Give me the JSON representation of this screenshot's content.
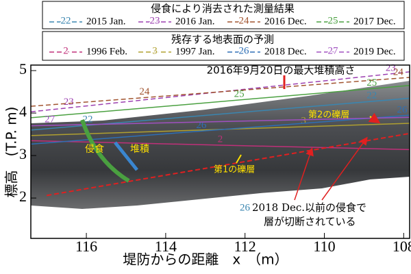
{
  "chart_data": {
    "type": "line",
    "xlabel": "堤防からの距離　x　（m）",
    "ylabel": "標高　(T.P. m)",
    "xlim": [
      117.4,
      107.85
    ],
    "xticks": [
      116,
      114,
      112,
      110,
      108
    ],
    "ylim": [
      1.05,
      5.13
    ],
    "yticks": [
      2,
      3,
      4,
      5
    ],
    "legends": [
      {
        "title": "侵食により消去された測量結果",
        "series": [
          {
            "name": "2015 Jan.",
            "label": "22",
            "color": "#3a86b0",
            "dashed": false,
            "x": [
              117.4,
              107.85
            ],
            "values": [
              3.6,
              4.35
            ]
          },
          {
            "name": "2016 Jan.",
            "label": "23",
            "color": "#9b3fb0",
            "dashed": true,
            "x": [
              117.4,
              107.85
            ],
            "values": [
              4.03,
              4.97
            ]
          },
          {
            "name": "2016 Dec.",
            "label": "24",
            "color": "#a0522d",
            "dashed": true,
            "x": [
              117.4,
              107.85
            ],
            "values": [
              4.16,
              4.84
            ]
          },
          {
            "name": "2017 Dec.",
            "label": "25",
            "color": "#4aa040",
            "dashed": false,
            "x": [
              117.4,
              107.85
            ],
            "values": [
              3.89,
              4.65
            ]
          }
        ]
      },
      {
        "title": "残存する地表面の予測",
        "series": [
          {
            "name": "1996 Feb.",
            "label": "2",
            "color": "#c0307a",
            "dashed": false,
            "x": [
              117.4,
              107.85
            ],
            "values": [
              3.35,
              3.14
            ]
          },
          {
            "name": "1997 Jan.",
            "label": "3",
            "color": "#b0a030",
            "dashed": false,
            "x": [
              117.4,
              107.85
            ],
            "values": [
              3.47,
              3.76
            ]
          },
          {
            "name": "2018 Dec.",
            "label": "26",
            "color": "#2e6fb5",
            "dashed": false,
            "x": [
              117.4,
              107.85
            ],
            "values": [
              3.27,
              3.95
            ]
          },
          {
            "name": "2019 Dec.",
            "label": "27",
            "color": "#a050c0",
            "dashed": false,
            "x": [
              117.4,
              107.85
            ],
            "values": [
              3.7,
              3.9
            ]
          }
        ]
      }
    ],
    "series": [
      {
        "color": "#e02020",
        "dashed": true,
        "x": [
          117.0,
          107.85
        ],
        "values": [
          2.06,
          3.52
        ]
      }
    ],
    "annotations": {
      "max_deposit": "2016年9月20日の最大堆積高さ",
      "gravel2": "第2の礫層",
      "gravel1": "第1の礫層",
      "erosion": "侵食",
      "deposit": "堆積",
      "note_num": "26",
      "note_line1": "2018 Dec.以前の侵食で",
      "note_line2": "層が切断されている"
    }
  }
}
